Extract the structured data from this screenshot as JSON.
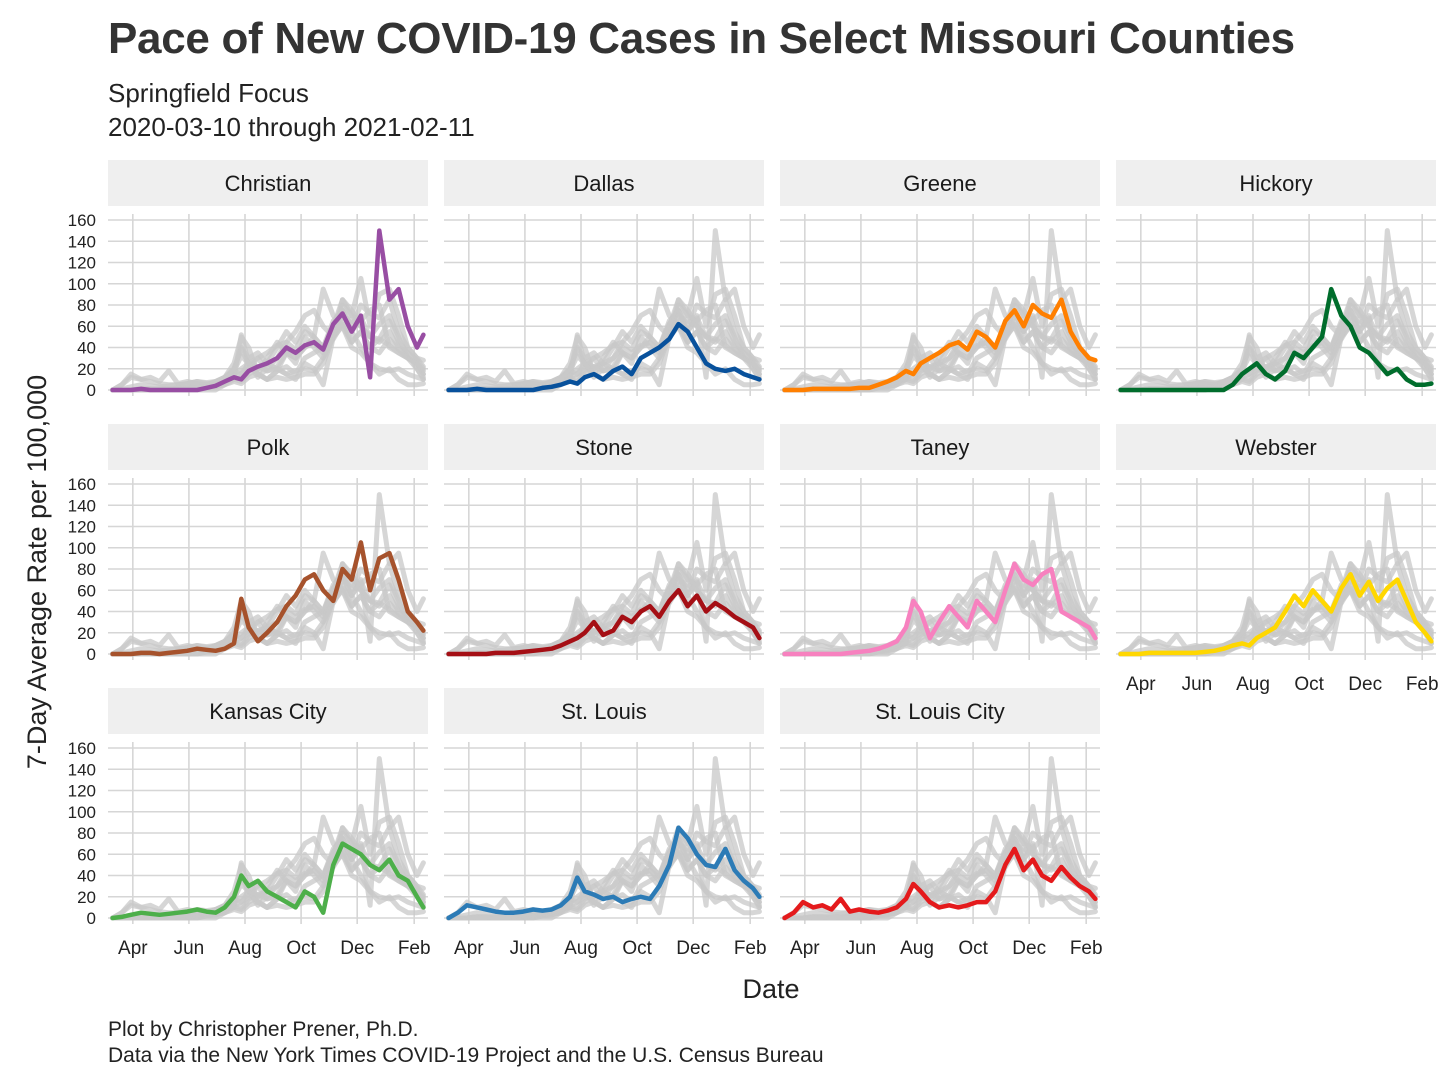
{
  "title": "Pace of New COVID-19 Cases in Select Missouri Counties",
  "subtitle_line1": "Springfield Focus",
  "subtitle_line2": "2020-03-10 through 2021-02-11",
  "caption_line1": "Plot by Christopher Prener, Ph.D.",
  "caption_line2": "Data via the New York Times COVID-19 Project and the U.S. Census Bureau",
  "background_series_color": "#c8c8c8",
  "strip_color": "#efefef",
  "grid_color": "#d6d6d6",
  "chart_data": {
    "type": "line",
    "facet_layout": "4 columns x 3 rows, free x labels on bottom panels",
    "xlabel": "Date",
    "ylabel": "7-Day Average Rate per 100,000",
    "ylim": [
      0,
      160
    ],
    "yticks": [
      0,
      20,
      40,
      60,
      80,
      100,
      120,
      140,
      160
    ],
    "xlim": [
      "2020-03-10",
      "2021-02-11"
    ],
    "xticks": [
      {
        "date": "2020-04-01",
        "label": "Apr"
      },
      {
        "date": "2020-06-01",
        "label": "Jun"
      },
      {
        "date": "2020-08-01",
        "label": "Aug"
      },
      {
        "date": "2020-10-01",
        "label": "Oct"
      },
      {
        "date": "2020-12-01",
        "label": "Dec"
      },
      {
        "date": "2021-02-01",
        "label": "Feb"
      }
    ],
    "grid": true,
    "legend": "none",
    "x": [
      "2020-03-10",
      "2020-03-20",
      "2020-03-30",
      "2020-04-10",
      "2020-04-20",
      "2020-04-30",
      "2020-05-10",
      "2020-05-20",
      "2020-05-30",
      "2020-06-10",
      "2020-06-20",
      "2020-06-30",
      "2020-07-10",
      "2020-07-20",
      "2020-07-28",
      "2020-08-05",
      "2020-08-15",
      "2020-08-25",
      "2020-09-05",
      "2020-09-15",
      "2020-09-25",
      "2020-10-05",
      "2020-10-15",
      "2020-10-25",
      "2020-11-05",
      "2020-11-15",
      "2020-11-25",
      "2020-12-05",
      "2020-12-15",
      "2020-12-25",
      "2021-01-05",
      "2021-01-15",
      "2021-01-25",
      "2021-02-04",
      "2021-02-11"
    ],
    "series": [
      {
        "name": "Christian",
        "color": "#984ea3",
        "values": [
          0,
          0,
          0,
          1,
          0,
          0,
          0,
          0,
          0,
          0,
          2,
          4,
          8,
          12,
          10,
          18,
          22,
          25,
          30,
          40,
          35,
          42,
          45,
          38,
          62,
          72,
          55,
          70,
          12,
          150,
          85,
          95,
          60,
          40,
          52
        ]
      },
      {
        "name": "Dallas",
        "color": "#08519c",
        "values": [
          0,
          0,
          0,
          1,
          0,
          0,
          0,
          0,
          0,
          0,
          2,
          3,
          5,
          8,
          6,
          12,
          15,
          10,
          18,
          22,
          15,
          30,
          35,
          40,
          48,
          62,
          55,
          40,
          25,
          20,
          18,
          20,
          15,
          12,
          10
        ]
      },
      {
        "name": "Greene",
        "color": "#ff7f00",
        "values": [
          0,
          0,
          0,
          1,
          1,
          1,
          1,
          1,
          2,
          2,
          5,
          8,
          12,
          18,
          15,
          25,
          30,
          35,
          42,
          45,
          38,
          55,
          50,
          40,
          65,
          75,
          60,
          80,
          72,
          68,
          85,
          55,
          40,
          30,
          28
        ]
      },
      {
        "name": "Hickory",
        "color": "#006d2c",
        "values": [
          0,
          0,
          0,
          0,
          0,
          0,
          0,
          0,
          0,
          0,
          0,
          0,
          5,
          15,
          20,
          25,
          15,
          10,
          18,
          35,
          30,
          40,
          50,
          95,
          70,
          60,
          40,
          35,
          25,
          15,
          20,
          10,
          5,
          5,
          6
        ]
      },
      {
        "name": "Polk",
        "color": "#a6522c",
        "values": [
          0,
          0,
          0,
          1,
          1,
          0,
          1,
          2,
          3,
          5,
          4,
          3,
          5,
          10,
          52,
          25,
          12,
          20,
          30,
          45,
          55,
          70,
          75,
          60,
          50,
          80,
          70,
          105,
          60,
          90,
          95,
          70,
          40,
          30,
          22
        ]
      },
      {
        "name": "Stone",
        "color": "#a50f15",
        "values": [
          0,
          0,
          0,
          0,
          0,
          1,
          1,
          1,
          2,
          3,
          4,
          5,
          8,
          12,
          15,
          20,
          30,
          18,
          22,
          35,
          30,
          40,
          45,
          35,
          50,
          60,
          45,
          55,
          40,
          48,
          42,
          35,
          30,
          25,
          15
        ]
      },
      {
        "name": "Taney",
        "color": "#f781bf",
        "values": [
          0,
          0,
          0,
          0,
          0,
          0,
          0,
          1,
          2,
          3,
          5,
          8,
          12,
          25,
          50,
          40,
          15,
          30,
          45,
          35,
          25,
          50,
          40,
          30,
          60,
          85,
          70,
          65,
          75,
          80,
          40,
          35,
          30,
          25,
          15
        ]
      },
      {
        "name": "Webster",
        "color": "#ffd700",
        "values": [
          0,
          0,
          0,
          1,
          1,
          1,
          1,
          1,
          1,
          2,
          3,
          5,
          8,
          10,
          8,
          15,
          20,
          25,
          40,
          55,
          45,
          60,
          50,
          40,
          62,
          75,
          55,
          68,
          50,
          62,
          70,
          50,
          30,
          20,
          12
        ]
      },
      {
        "name": "Kansas City",
        "color": "#4daf4a",
        "values": [
          0,
          1,
          3,
          5,
          4,
          3,
          4,
          5,
          6,
          8,
          6,
          5,
          10,
          20,
          40,
          30,
          35,
          25,
          20,
          15,
          10,
          25,
          20,
          5,
          50,
          70,
          65,
          60,
          50,
          45,
          55,
          40,
          35,
          20,
          10
        ]
      },
      {
        "name": "St. Louis",
        "color": "#2c7bb6",
        "values": [
          0,
          5,
          12,
          10,
          8,
          6,
          5,
          5,
          6,
          8,
          7,
          8,
          12,
          20,
          38,
          25,
          22,
          18,
          20,
          15,
          18,
          20,
          18,
          30,
          50,
          85,
          75,
          60,
          50,
          48,
          65,
          45,
          35,
          28,
          20
        ]
      },
      {
        "name": "St. Louis City",
        "color": "#e41a1c",
        "values": [
          0,
          5,
          15,
          10,
          12,
          8,
          18,
          6,
          8,
          6,
          5,
          7,
          10,
          18,
          32,
          25,
          15,
          10,
          12,
          10,
          12,
          15,
          15,
          25,
          50,
          65,
          45,
          55,
          40,
          35,
          48,
          38,
          30,
          25,
          18
        ]
      }
    ]
  }
}
